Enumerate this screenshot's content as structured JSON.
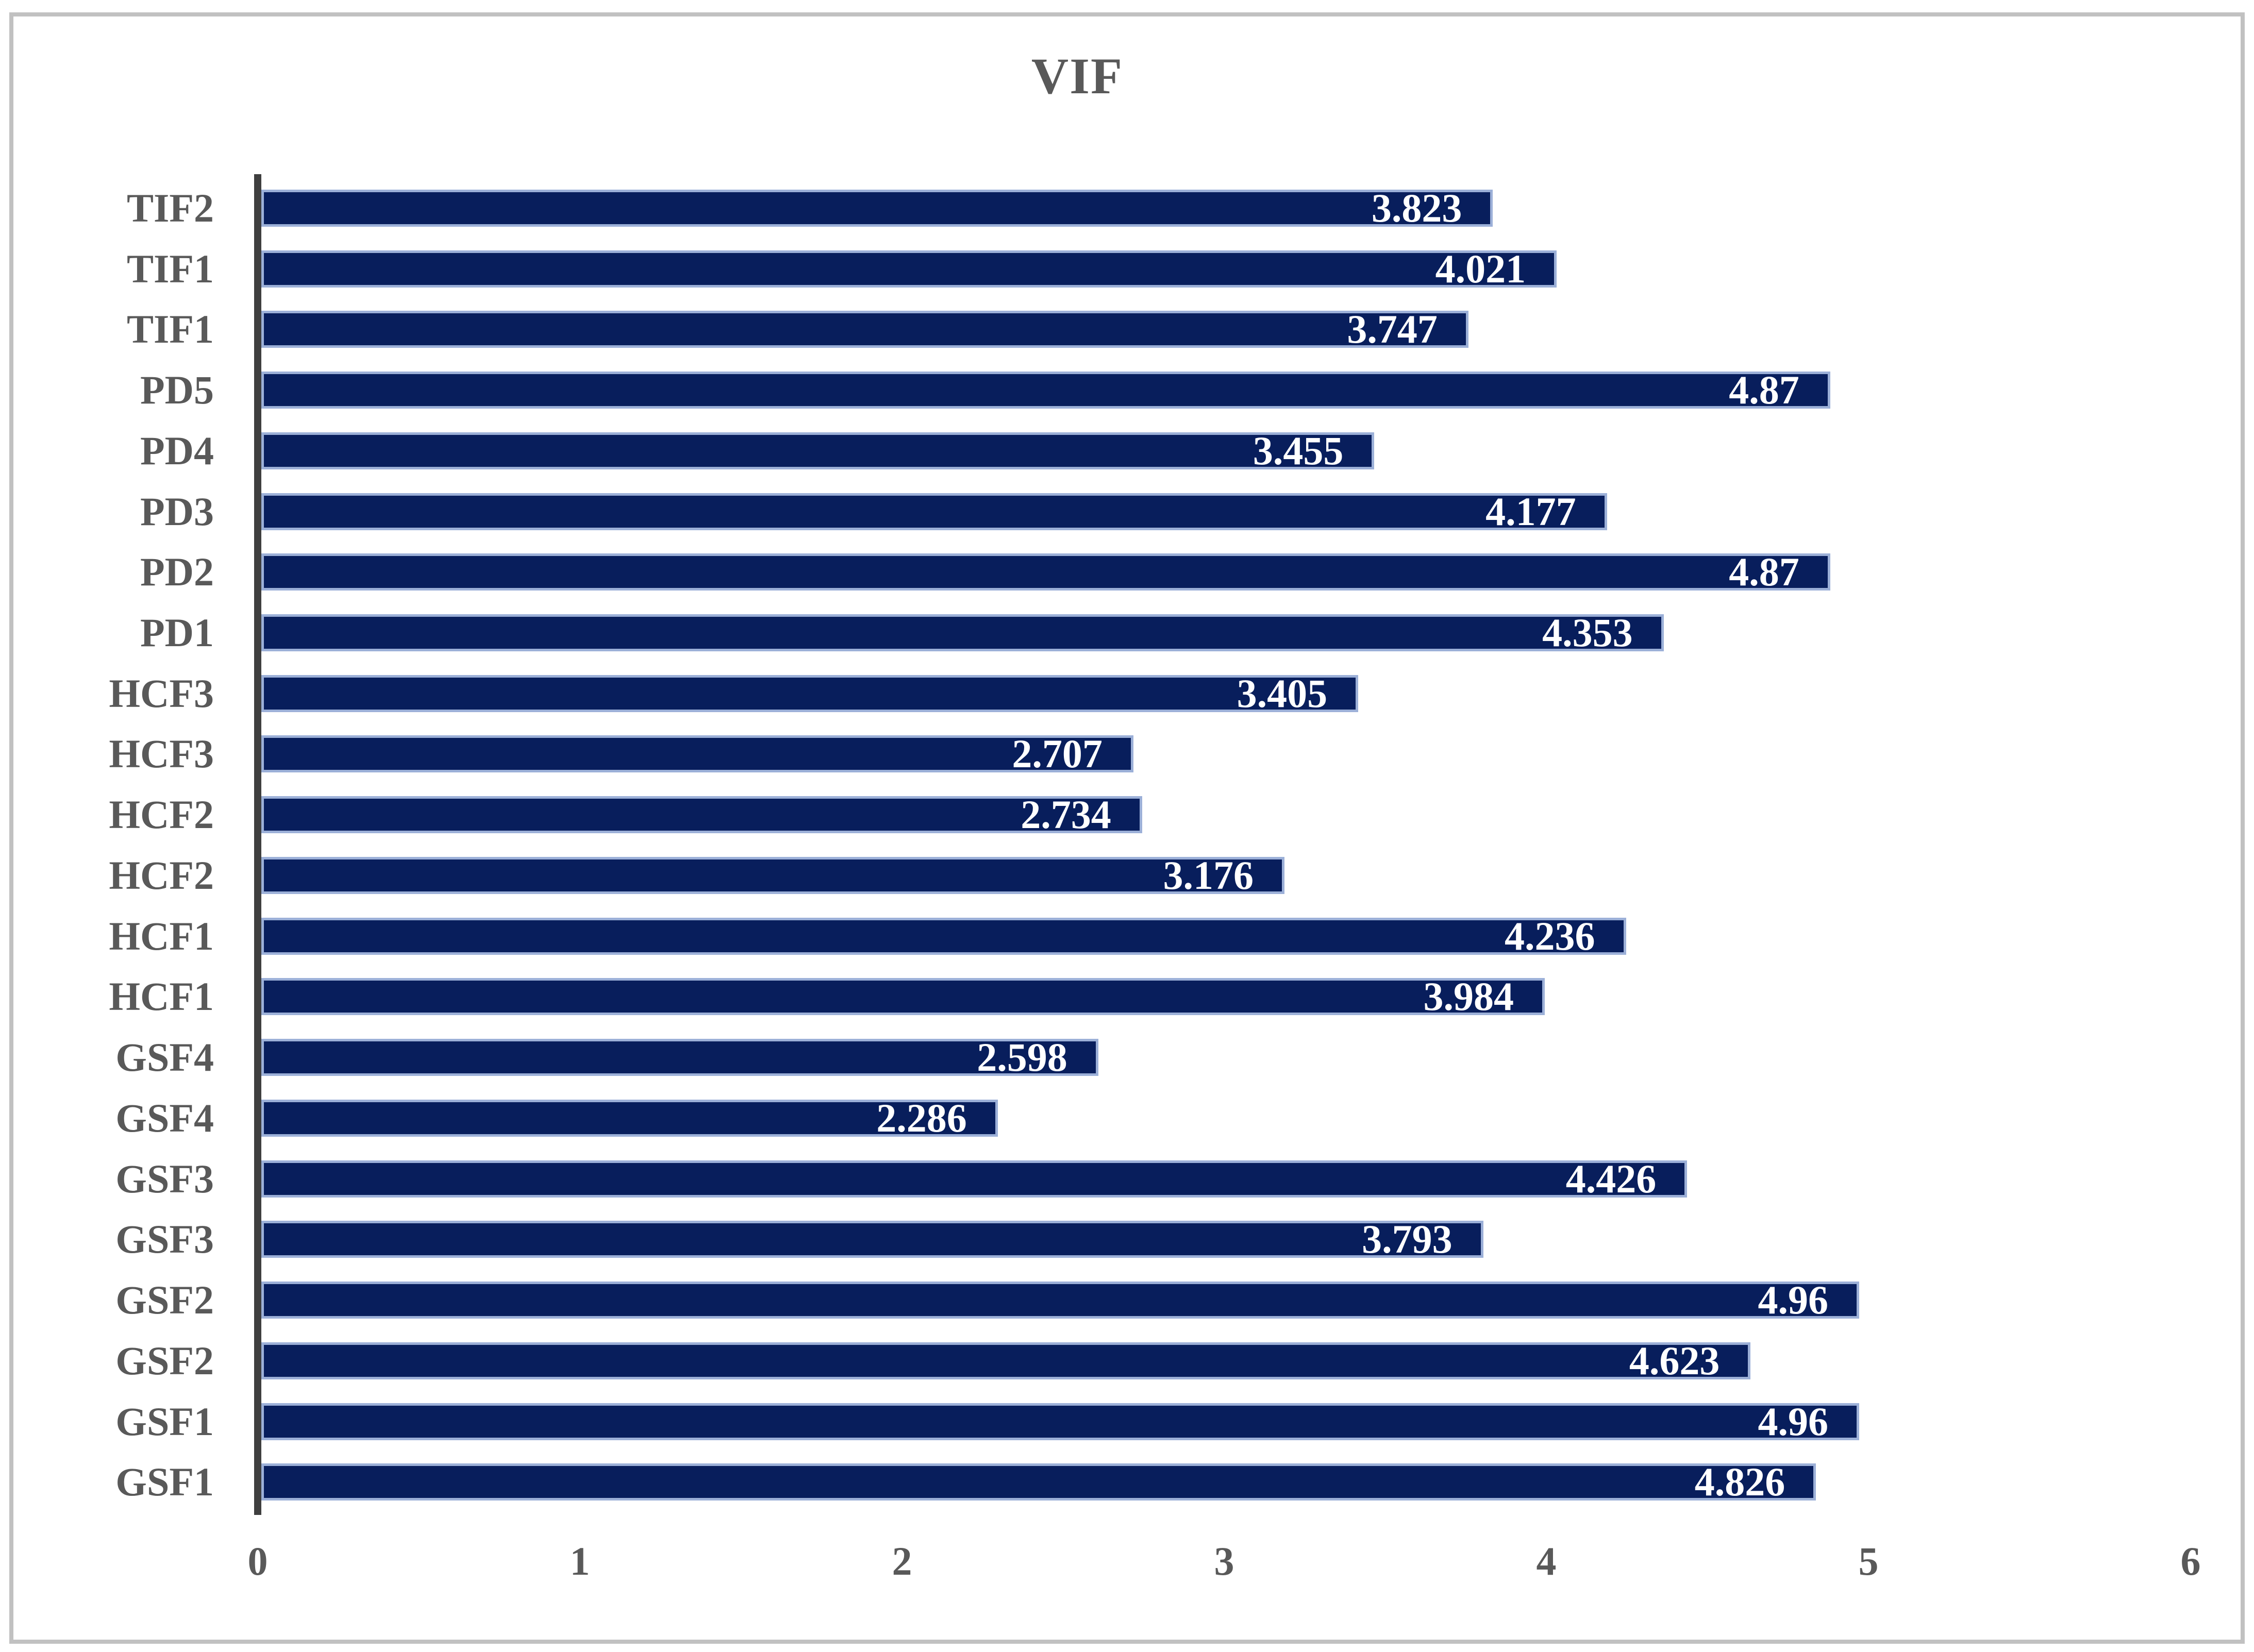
{
  "chart_data": {
    "type": "bar",
    "orientation": "horizontal",
    "title": "VIF",
    "categories": [
      "TIF2",
      "TIF1",
      "TIF1",
      "PD5",
      "PD4",
      "PD3",
      "PD2",
      "PD1",
      "HCF3",
      "HCF3",
      "HCF2",
      "HCF2",
      "HCF1",
      "HCF1",
      "GSF4",
      "GSF4",
      "GSF3",
      "GSF3",
      "GSF2",
      "GSF2",
      "GSF1",
      "GSF1"
    ],
    "values": [
      3.823,
      4.021,
      3.747,
      4.87,
      3.455,
      4.177,
      4.87,
      4.353,
      3.405,
      2.707,
      2.734,
      3.176,
      4.236,
      3.984,
      2.598,
      2.286,
      4.426,
      3.793,
      4.96,
      4.623,
      4.96,
      4.826
    ],
    "value_labels": [
      "3.823",
      "4.021",
      "3.747",
      "4.87",
      "3.455",
      "4.177",
      "4.87",
      "4.353",
      "3.405",
      "2.707",
      "2.734",
      "3.176",
      "4.236",
      "3.984",
      "2.598",
      "2.286",
      "4.426",
      "3.793",
      "4.96",
      "4.623",
      "4.96",
      "4.826"
    ],
    "xlabel": "",
    "ylabel": "",
    "xlim": [
      0,
      6
    ],
    "x_ticks": [
      "0",
      "1",
      "2",
      "3",
      "4",
      "5",
      "6"
    ],
    "grid": false,
    "legend": "none",
    "colors": {
      "bar_fill": "#081e5c",
      "bar_border": "#9cb0d8",
      "value_text": "#ffffff",
      "axis_text": "#595959",
      "axis_line": "#3f3f3f",
      "frame_border": "#c1c1c1",
      "background": "#ffffff"
    }
  }
}
